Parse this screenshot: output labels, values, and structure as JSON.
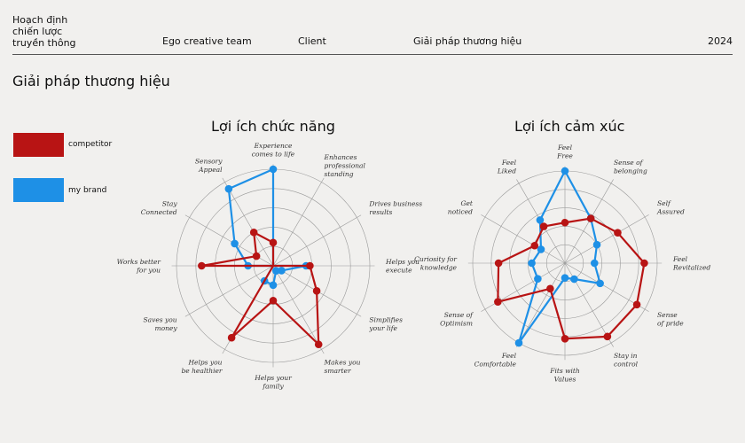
{
  "header": {
    "brand_lines": [
      "Hoạch định",
      "chiến lược",
      "truyền thông"
    ],
    "nav": [
      "Ego creative team",
      "Client",
      "Giải pháp thương hiệu"
    ],
    "year": "2024"
  },
  "page_title": "Giải pháp thương hiệu",
  "legend": [
    {
      "label": "competitor",
      "color": "#b81414"
    },
    {
      "label": "my brand",
      "color": "#1e90e6"
    }
  ],
  "colors": {
    "competitor": "#b81414",
    "my_brand": "#1e90e6",
    "grid": "#9a9a9a"
  },
  "chart_data": [
    {
      "type": "radar",
      "title": "Lợi ích chức năng",
      "axes": [
        [
          "Experience",
          "comes to life"
        ],
        [
          "Enhances",
          "professional",
          "standing"
        ],
        [
          "Drives business",
          "results"
        ],
        [
          "Helps you",
          "execute"
        ],
        [
          "Simplifies",
          "your life"
        ],
        [
          "Makes you",
          "smarter"
        ],
        [
          "Helps your",
          "family"
        ],
        [
          "Helps you",
          "be healthier"
        ],
        [
          "Saves you",
          "money"
        ],
        [
          "Works better",
          "for you"
        ],
        [
          "Stay",
          "Connected"
        ],
        [
          "Sensory",
          "Appeal"
        ]
      ],
      "range": [
        0,
        5
      ],
      "series": [
        {
          "name": "competitor",
          "values": [
            1.2,
            0,
            0,
            1.9,
            2.6,
            4.7,
            1.8,
            4.3,
            0,
            3.7,
            1.0,
            2.0
          ]
        },
        {
          "name": "my brand",
          "values": [
            5.0,
            0,
            0,
            1.7,
            0.5,
            0.3,
            1.0,
            0.9,
            0,
            1.3,
            2.3,
            4.6
          ]
        }
      ]
    },
    {
      "type": "radar",
      "title": "Lợi ích cảm xúc",
      "axes": [
        [
          "Feel",
          "Free"
        ],
        [
          "Sense of",
          "belonging"
        ],
        [
          "Self",
          "Assured"
        ],
        [
          "Feel",
          "Revitalized"
        ],
        [
          "Sense",
          "of pride"
        ],
        [
          "Stay in",
          "control"
        ],
        [
          "Fits with",
          "Values"
        ],
        [
          "Feel",
          "Comfortable"
        ],
        [
          "Sense of",
          "Optimism"
        ],
        [
          "Curiosity for",
          "knowledge"
        ],
        [
          "Get",
          "noticed"
        ],
        [
          "Feel",
          "Liked"
        ]
      ],
      "range": [
        0,
        5
      ],
      "series": [
        {
          "name": "competitor",
          "values": [
            2.2,
            2.8,
            3.3,
            4.3,
            4.5,
            4.6,
            4.1,
            1.6,
            4.2,
            3.6,
            1.9,
            2.3
          ]
        },
        {
          "name": "my brand",
          "values": [
            5.0,
            2.8,
            2.0,
            1.6,
            2.2,
            1.0,
            0.8,
            5.0,
            1.7,
            1.8,
            1.5,
            2.7
          ]
        }
      ]
    }
  ]
}
